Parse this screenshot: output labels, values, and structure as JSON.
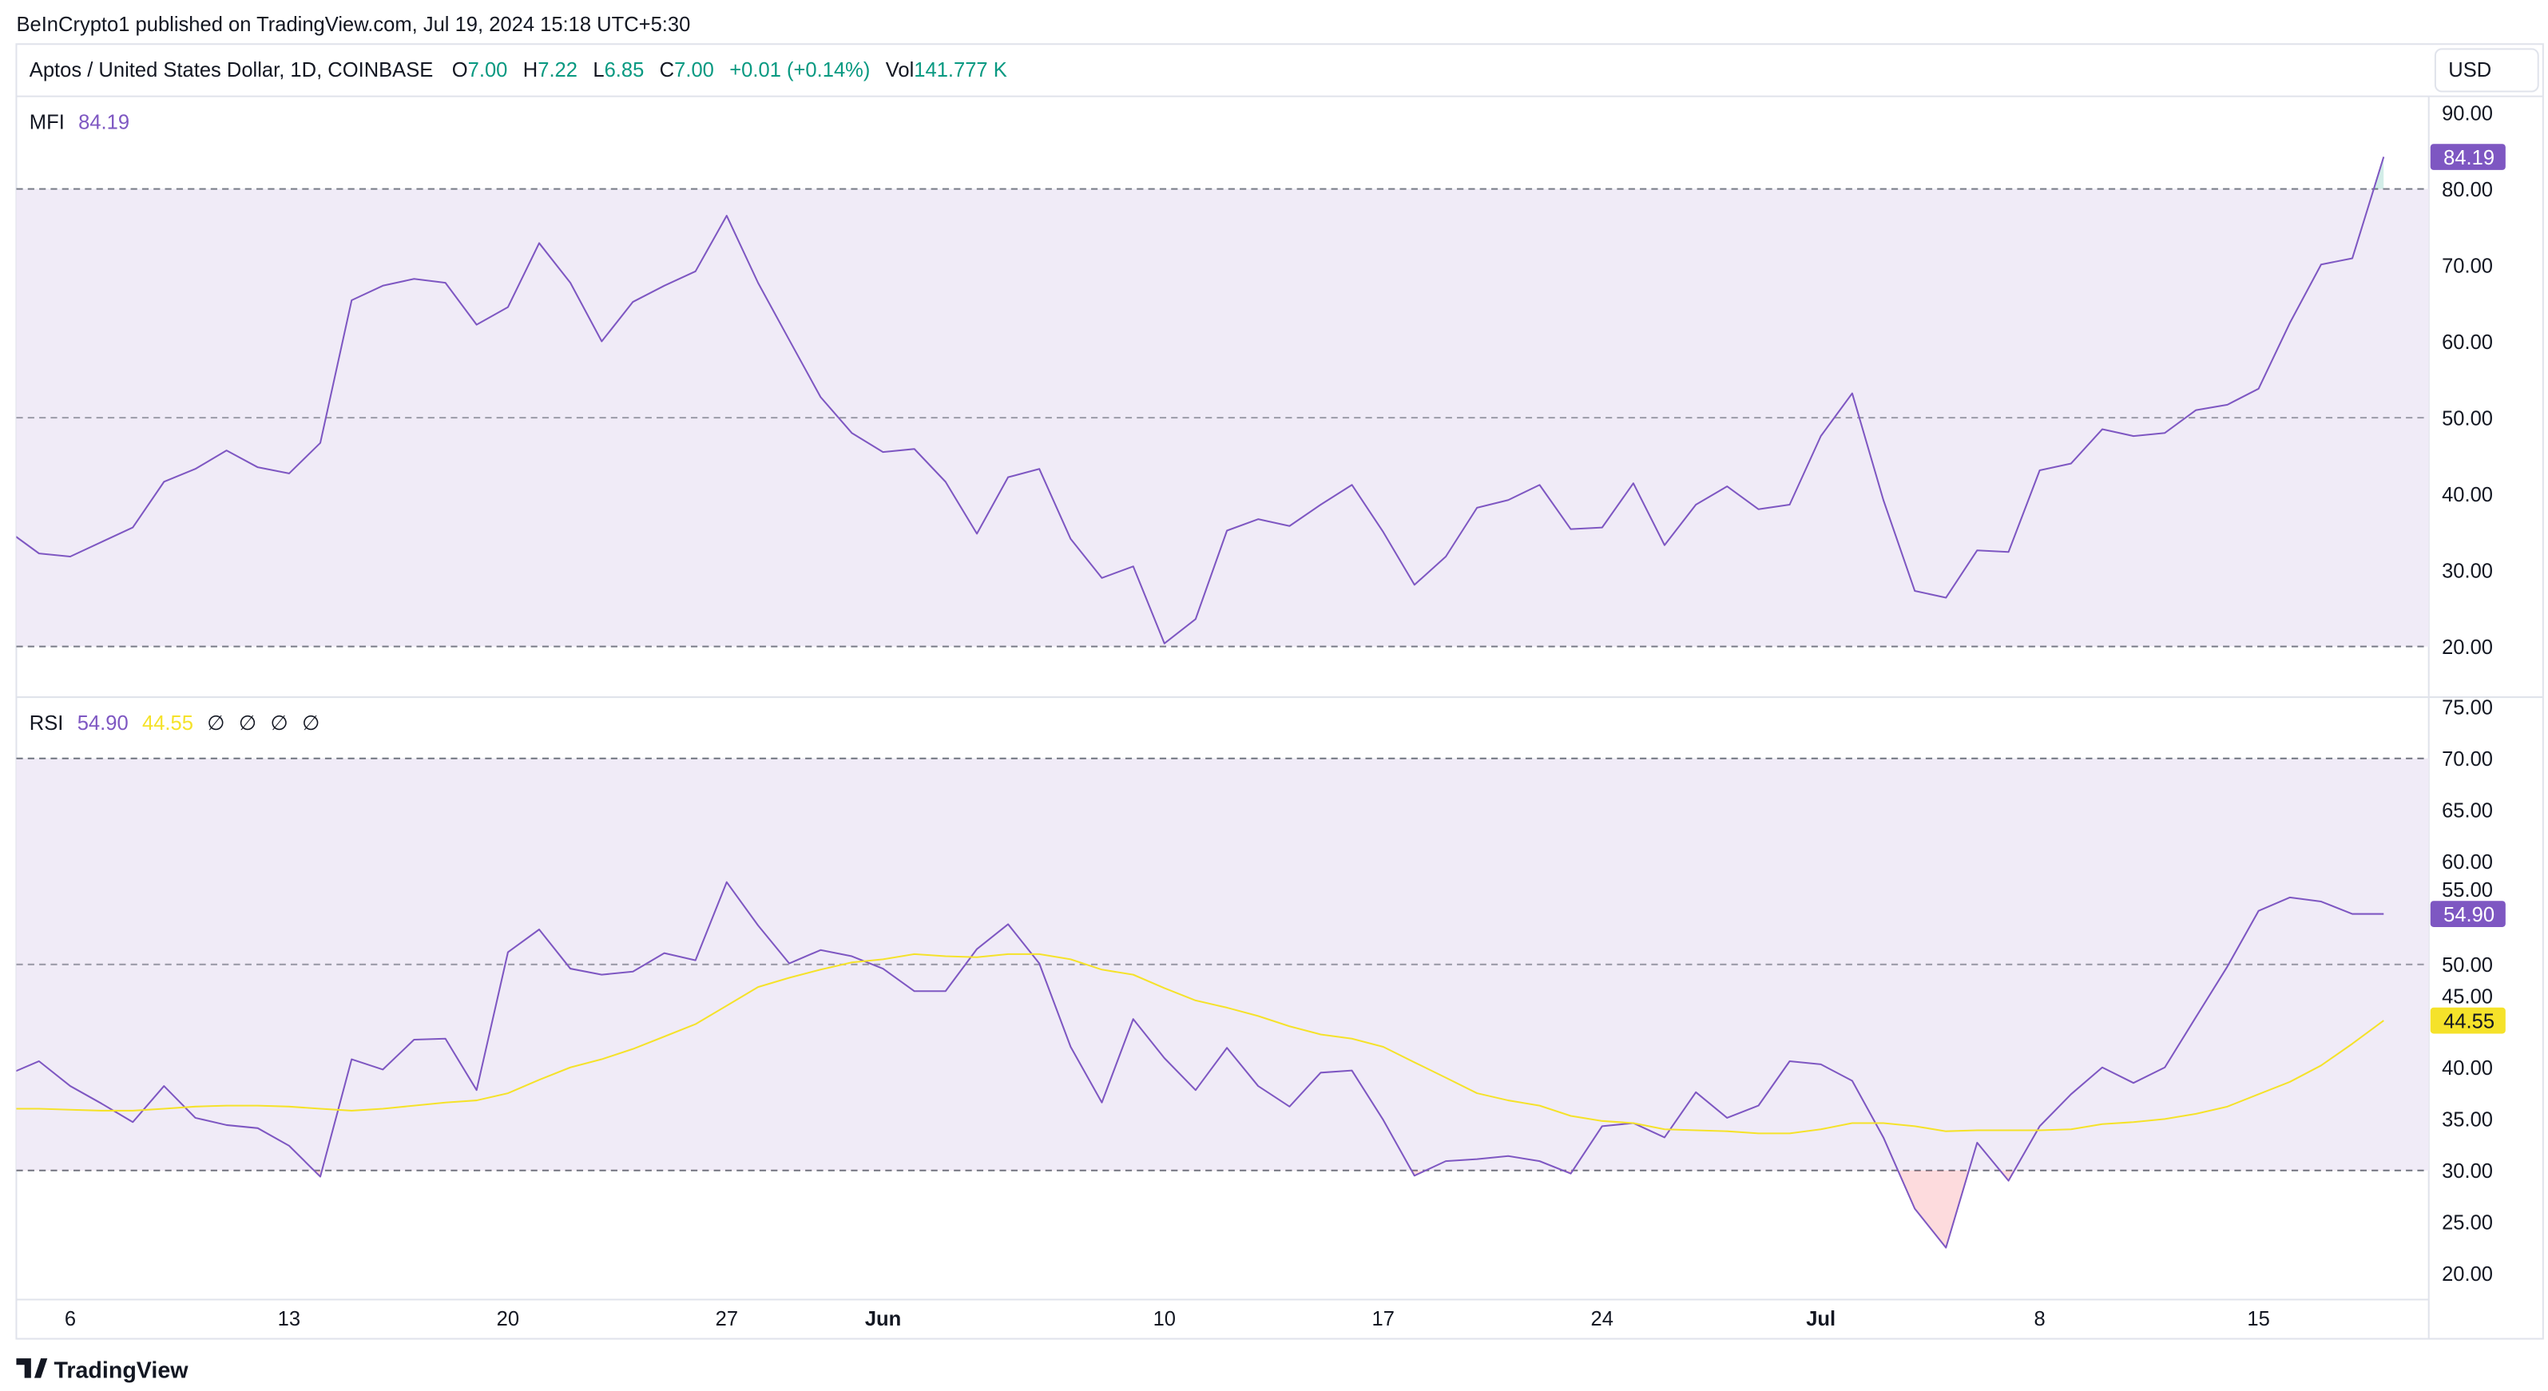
{
  "header": {
    "publisher_line": "BeInCrypto1 published on TradingView.com, Jul 19, 2024 15:18 UTC+5:30"
  },
  "legend": {
    "symbol": "Aptos / United States Dollar, 1D, COINBASE",
    "o_label": "O",
    "o": "7.00",
    "h_label": "H",
    "h": "7.22",
    "l_label": "L",
    "l": "6.85",
    "c_label": "C",
    "c": "7.00",
    "change": "+0.01 (+0.14%)",
    "vol_label": "Vol",
    "vol": "141.777 K"
  },
  "currency_button": "USD",
  "footer": {
    "brand": "TradingView"
  },
  "colors": {
    "mfi": "#7e57c2",
    "rsi": "#7e57c2",
    "rsi_ma": "#f5e22a",
    "up": "#089981",
    "band_fill": "#f0ebf7"
  },
  "chart_data": [
    {
      "type": "line",
      "title": "MFI",
      "last_value": "84.19",
      "ylim": [
        15,
        92
      ],
      "yticks": [
        "90.00",
        "80.00",
        "70.00",
        "60.00",
        "50.00",
        "40.00",
        "30.00",
        "20.00"
      ],
      "bands": {
        "upper": 80,
        "middle": 50,
        "lower": 20
      },
      "x": [
        "2024-05-04",
        "2024-05-05",
        "2024-05-06",
        "2024-05-07",
        "2024-05-08",
        "2024-05-09",
        "2024-05-10",
        "2024-05-11",
        "2024-05-12",
        "2024-05-13",
        "2024-05-14",
        "2024-05-15",
        "2024-05-16",
        "2024-05-17",
        "2024-05-18",
        "2024-05-19",
        "2024-05-20",
        "2024-05-21",
        "2024-05-22",
        "2024-05-23",
        "2024-05-24",
        "2024-05-25",
        "2024-05-26",
        "2024-05-27",
        "2024-05-28",
        "2024-05-29",
        "2024-05-30",
        "2024-05-31",
        "2024-06-01",
        "2024-06-02",
        "2024-06-03",
        "2024-06-04",
        "2024-06-05",
        "2024-06-06",
        "2024-06-07",
        "2024-06-08",
        "2024-06-09",
        "2024-06-10",
        "2024-06-11",
        "2024-06-12",
        "2024-06-13",
        "2024-06-14",
        "2024-06-15",
        "2024-06-16",
        "2024-06-17",
        "2024-06-18",
        "2024-06-19",
        "2024-06-20",
        "2024-06-21",
        "2024-06-22",
        "2024-06-23",
        "2024-06-24",
        "2024-06-25",
        "2024-06-26",
        "2024-06-27",
        "2024-06-28",
        "2024-06-29",
        "2024-06-30",
        "2024-07-01",
        "2024-07-02",
        "2024-07-03",
        "2024-07-04",
        "2024-07-05",
        "2024-07-06",
        "2024-07-07",
        "2024-07-08",
        "2024-07-09",
        "2024-07-10",
        "2024-07-11",
        "2024-07-12",
        "2024-07-13",
        "2024-07-14",
        "2024-07-15",
        "2024-07-16",
        "2024-07-17",
        "2024-07-18",
        "2024-07-19"
      ],
      "series": [
        {
          "name": "MFI",
          "values": [
            35.2,
            32.2,
            31.8,
            33.7,
            35.6,
            41.6,
            43.3,
            45.7,
            43.5,
            42.7,
            46.7,
            65.4,
            67.3,
            68.2,
            67.7,
            62.2,
            64.5,
            72.9,
            67.7,
            60.0,
            65.2,
            67.3,
            69.2,
            76.5,
            67.7,
            60.2,
            52.7,
            48.0,
            45.5,
            45.9,
            41.6,
            34.8,
            42.2,
            43.3,
            34.1,
            29.0,
            30.5,
            20.4,
            23.6,
            35.2,
            36.7,
            35.8,
            38.6,
            41.2,
            35.0,
            28.1,
            31.8,
            38.2,
            39.2,
            41.2,
            35.4,
            35.6,
            41.4,
            33.3,
            38.6,
            41.0,
            38.0,
            38.6,
            47.6,
            53.2,
            39.2,
            27.3,
            26.4,
            32.6,
            32.4,
            43.1,
            44.0,
            48.5,
            47.6,
            48.0,
            51.0,
            51.7,
            53.8,
            62.4,
            70.1,
            70.9,
            84.19
          ]
        }
      ]
    },
    {
      "type": "line",
      "title": "RSI",
      "last_values": [
        "54.90",
        "44.55"
      ],
      "na_markers": [
        "∅",
        "∅",
        "∅",
        "∅"
      ],
      "ylim": [
        17,
        75
      ],
      "yticks": [
        "75.00",
        "70.00",
        "65.00",
        "60.00",
        "55.00",
        "50.00",
        "45.00",
        "40.00",
        "35.00",
        "30.00",
        "25.00",
        "20.00"
      ],
      "bands": {
        "upper": 70,
        "middle": 50,
        "lower": 30
      },
      "xticks": [
        {
          "date": "2024-05-06",
          "label": "6"
        },
        {
          "date": "2024-05-13",
          "label": "13"
        },
        {
          "date": "2024-05-20",
          "label": "20"
        },
        {
          "date": "2024-05-27",
          "label": "27"
        },
        {
          "date": "2024-06-01",
          "label": "Jun"
        },
        {
          "date": "2024-06-10",
          "label": "10"
        },
        {
          "date": "2024-06-17",
          "label": "17"
        },
        {
          "date": "2024-06-24",
          "label": "24"
        },
        {
          "date": "2024-07-01",
          "label": "Jul"
        },
        {
          "date": "2024-07-08",
          "label": "8"
        },
        {
          "date": "2024-07-15",
          "label": "15"
        }
      ],
      "series": [
        {
          "name": "RSI",
          "values": [
            39.3,
            40.6,
            38.2,
            36.5,
            34.7,
            38.2,
            35.1,
            34.4,
            34.1,
            32.4,
            29.4,
            40.8,
            39.8,
            42.7,
            42.8,
            37.8,
            51.2,
            53.4,
            49.6,
            49.0,
            49.3,
            51.1,
            50.4,
            58.0,
            53.8,
            50.1,
            51.4,
            50.8,
            49.6,
            47.4,
            47.4,
            51.5,
            53.9,
            50.1,
            42.0,
            36.6,
            44.7,
            40.9,
            37.8,
            41.9,
            38.2,
            36.2,
            39.5,
            39.7,
            34.9,
            29.5,
            30.9,
            31.1,
            31.4,
            30.9,
            29.7,
            34.3,
            34.6,
            33.2,
            37.6,
            35.1,
            36.3,
            40.6,
            40.3,
            38.7,
            33.2,
            26.3,
            22.5,
            32.7,
            29.0,
            34.3,
            37.4,
            40.0,
            38.5,
            40.0,
            44.9,
            49.8,
            55.2,
            56.5,
            56.1,
            54.9,
            54.9
          ]
        },
        {
          "name": "RSI-based MA",
          "values": [
            36.0,
            36.0,
            35.9,
            35.8,
            35.8,
            36.0,
            36.2,
            36.3,
            36.3,
            36.2,
            36.0,
            35.8,
            36.0,
            36.3,
            36.6,
            36.8,
            37.5,
            38.8,
            40.0,
            40.8,
            41.8,
            43.0,
            44.2,
            46.0,
            47.8,
            48.7,
            49.5,
            50.2,
            50.5,
            51.0,
            50.8,
            50.7,
            51.0,
            51.0,
            50.5,
            49.5,
            49.0,
            47.7,
            46.5,
            45.8,
            45.0,
            44.0,
            43.2,
            42.8,
            42.0,
            40.5,
            39.0,
            37.5,
            36.8,
            36.3,
            35.3,
            34.8,
            34.6,
            34.0,
            33.9,
            33.8,
            33.6,
            33.6,
            34.0,
            34.6,
            34.6,
            34.3,
            33.8,
            33.9,
            33.9,
            33.9,
            34.0,
            34.5,
            34.7,
            35.0,
            35.5,
            36.2,
            37.4,
            38.6,
            40.2,
            42.3,
            44.55
          ]
        }
      ]
    }
  ]
}
